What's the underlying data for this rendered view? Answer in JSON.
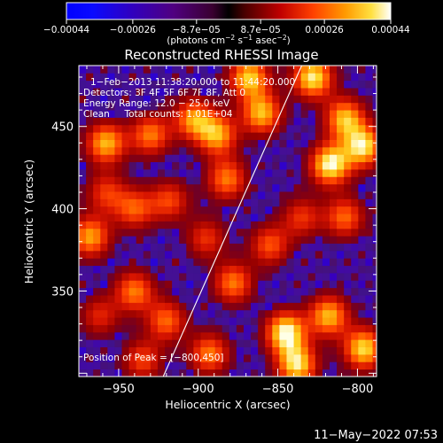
{
  "chart_data": {
    "type": "heatmap",
    "title": "Reconstructed RHESSI Image",
    "xlabel": "Heliocentric X (arcsec)",
    "ylabel": "Heliocentric Y (arcsec)",
    "xlim": [
      -975,
      -788
    ],
    "ylim": [
      298,
      487
    ],
    "x_ticks": [
      -950,
      -900,
      -850,
      -800
    ],
    "x_tick_labels": [
      "−950",
      "−900",
      "−850",
      "−800"
    ],
    "y_ticks": [
      350,
      400,
      450
    ],
    "y_tick_labels": [
      "350",
      "400",
      "450"
    ],
    "colorbar": {
      "min": -0.00044,
      "max": 0.00044,
      "ticks": [
        -0.00044,
        -0.00026,
        -8.7e-05,
        8.7e-05,
        0.00026,
        0.00044
      ],
      "tick_labels": [
        "−0.00044",
        "−0.00026",
        "−8.7e−05",
        "8.7e−05",
        "0.00026",
        "0.00044"
      ],
      "units_parts": [
        "(photons cm",
        "−2",
        " s",
        "−1",
        " asec",
        "−2",
        ")"
      ]
    },
    "annotations": [
      "1−Feb−2013 11:38:20.000 to 11:44:20.000",
      "Detectors: 3F 4F 5F 6F 7F 8F, Att 0",
      "Energy Range: 12.0 − 25.0 keV",
      "Clean     Total counts: 1.01E+04"
    ],
    "peak_label": "Position of Peak = [−800,450]",
    "limb_line": [
      [
        -922,
        298
      ],
      [
        -835,
        487
      ]
    ],
    "bright_regions": [
      {
        "x": -817,
        "y": 427,
        "value": 0.00044
      },
      {
        "x": -796,
        "y": 438,
        "value": 0.0004
      },
      {
        "x": -808,
        "y": 455,
        "value": 0.00036
      },
      {
        "x": -828,
        "y": 480,
        "value": 0.00042
      },
      {
        "x": -860,
        "y": 458,
        "value": 0.00036
      },
      {
        "x": -868,
        "y": 480,
        "value": 0.00038
      },
      {
        "x": -888,
        "y": 445,
        "value": 0.00034
      },
      {
        "x": -882,
        "y": 418,
        "value": 0.0003
      },
      {
        "x": -903,
        "y": 455,
        "value": 0.00032
      },
      {
        "x": -930,
        "y": 445,
        "value": 0.0003
      },
      {
        "x": -958,
        "y": 440,
        "value": 0.00036
      },
      {
        "x": -958,
        "y": 410,
        "value": 0.00022
      },
      {
        "x": -940,
        "y": 400,
        "value": 0.00026
      },
      {
        "x": -918,
        "y": 405,
        "value": 0.00024
      },
      {
        "x": -968,
        "y": 383,
        "value": 0.00034
      },
      {
        "x": -895,
        "y": 382,
        "value": 0.00022
      },
      {
        "x": -855,
        "y": 378,
        "value": 0.00026
      },
      {
        "x": -835,
        "y": 395,
        "value": 0.00022
      },
      {
        "x": -808,
        "y": 395,
        "value": 0.00028
      },
      {
        "x": -878,
        "y": 355,
        "value": 0.0003
      },
      {
        "x": -940,
        "y": 350,
        "value": 0.0003
      },
      {
        "x": -920,
        "y": 332,
        "value": 0.00028
      },
      {
        "x": -962,
        "y": 335,
        "value": 0.0002
      },
      {
        "x": -845,
        "y": 325,
        "value": 0.00044
      },
      {
        "x": -838,
        "y": 305,
        "value": 0.0004
      },
      {
        "x": -818,
        "y": 335,
        "value": 0.00036
      },
      {
        "x": -796,
        "y": 315,
        "value": 0.0004
      },
      {
        "x": -893,
        "y": 312,
        "value": 0.0003
      },
      {
        "x": -935,
        "y": 308,
        "value": 0.00024
      }
    ],
    "grid": false
  },
  "timestamp": "11−May−2022 07:53"
}
